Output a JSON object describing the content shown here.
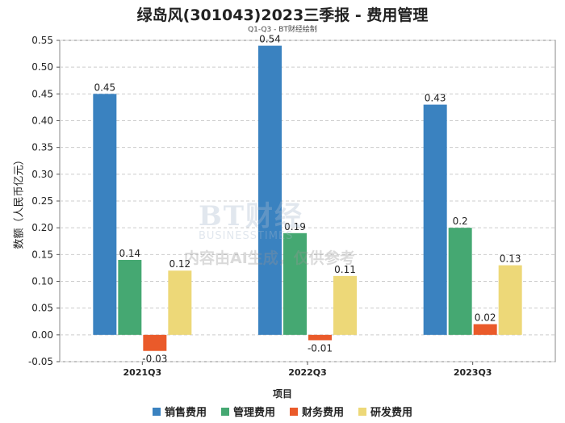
{
  "chart_data": {
    "type": "bar",
    "title": "绿岛风(301043)2023三季报 - 费用管理",
    "subtitle": "Q1-Q3 - BT财经绘制",
    "xlabel": "项目",
    "ylabel": "数额（人民币亿元）",
    "categories": [
      "2021Q3",
      "2022Q3",
      "2023Q3"
    ],
    "ylim": [
      -0.05,
      0.55
    ],
    "yticks": [
      "0.55",
      "0.50",
      "0.45",
      "0.40",
      "0.35",
      "0.30",
      "0.25",
      "0.20",
      "0.15",
      "0.10",
      "0.05",
      "0.00",
      "-0.05"
    ],
    "series": [
      {
        "name": "销售费用",
        "color": "#3a82c0",
        "values": [
          0.45,
          0.54,
          0.43
        ],
        "labels": [
          "0.45",
          "0.54",
          "0.43"
        ]
      },
      {
        "name": "管理费用",
        "color": "#45a872",
        "values": [
          0.14,
          0.19,
          0.2
        ],
        "labels": [
          "0.14",
          "0.19",
          "0.2"
        ]
      },
      {
        "name": "财务费用",
        "color": "#ea5a2a",
        "values": [
          -0.03,
          -0.01,
          0.02
        ],
        "labels": [
          "-0.03",
          "-0.01",
          "0.02"
        ]
      },
      {
        "name": "研发费用",
        "color": "#edd878",
        "values": [
          0.12,
          0.11,
          0.13
        ],
        "labels": [
          "0.12",
          "0.11",
          "0.13"
        ]
      }
    ],
    "legend_position": "bottom",
    "grid": true
  },
  "watermark": {
    "logo": "BT财经",
    "sub": "BUSINESSTIMES",
    "note": "内容由AI生成，仅供参考"
  }
}
